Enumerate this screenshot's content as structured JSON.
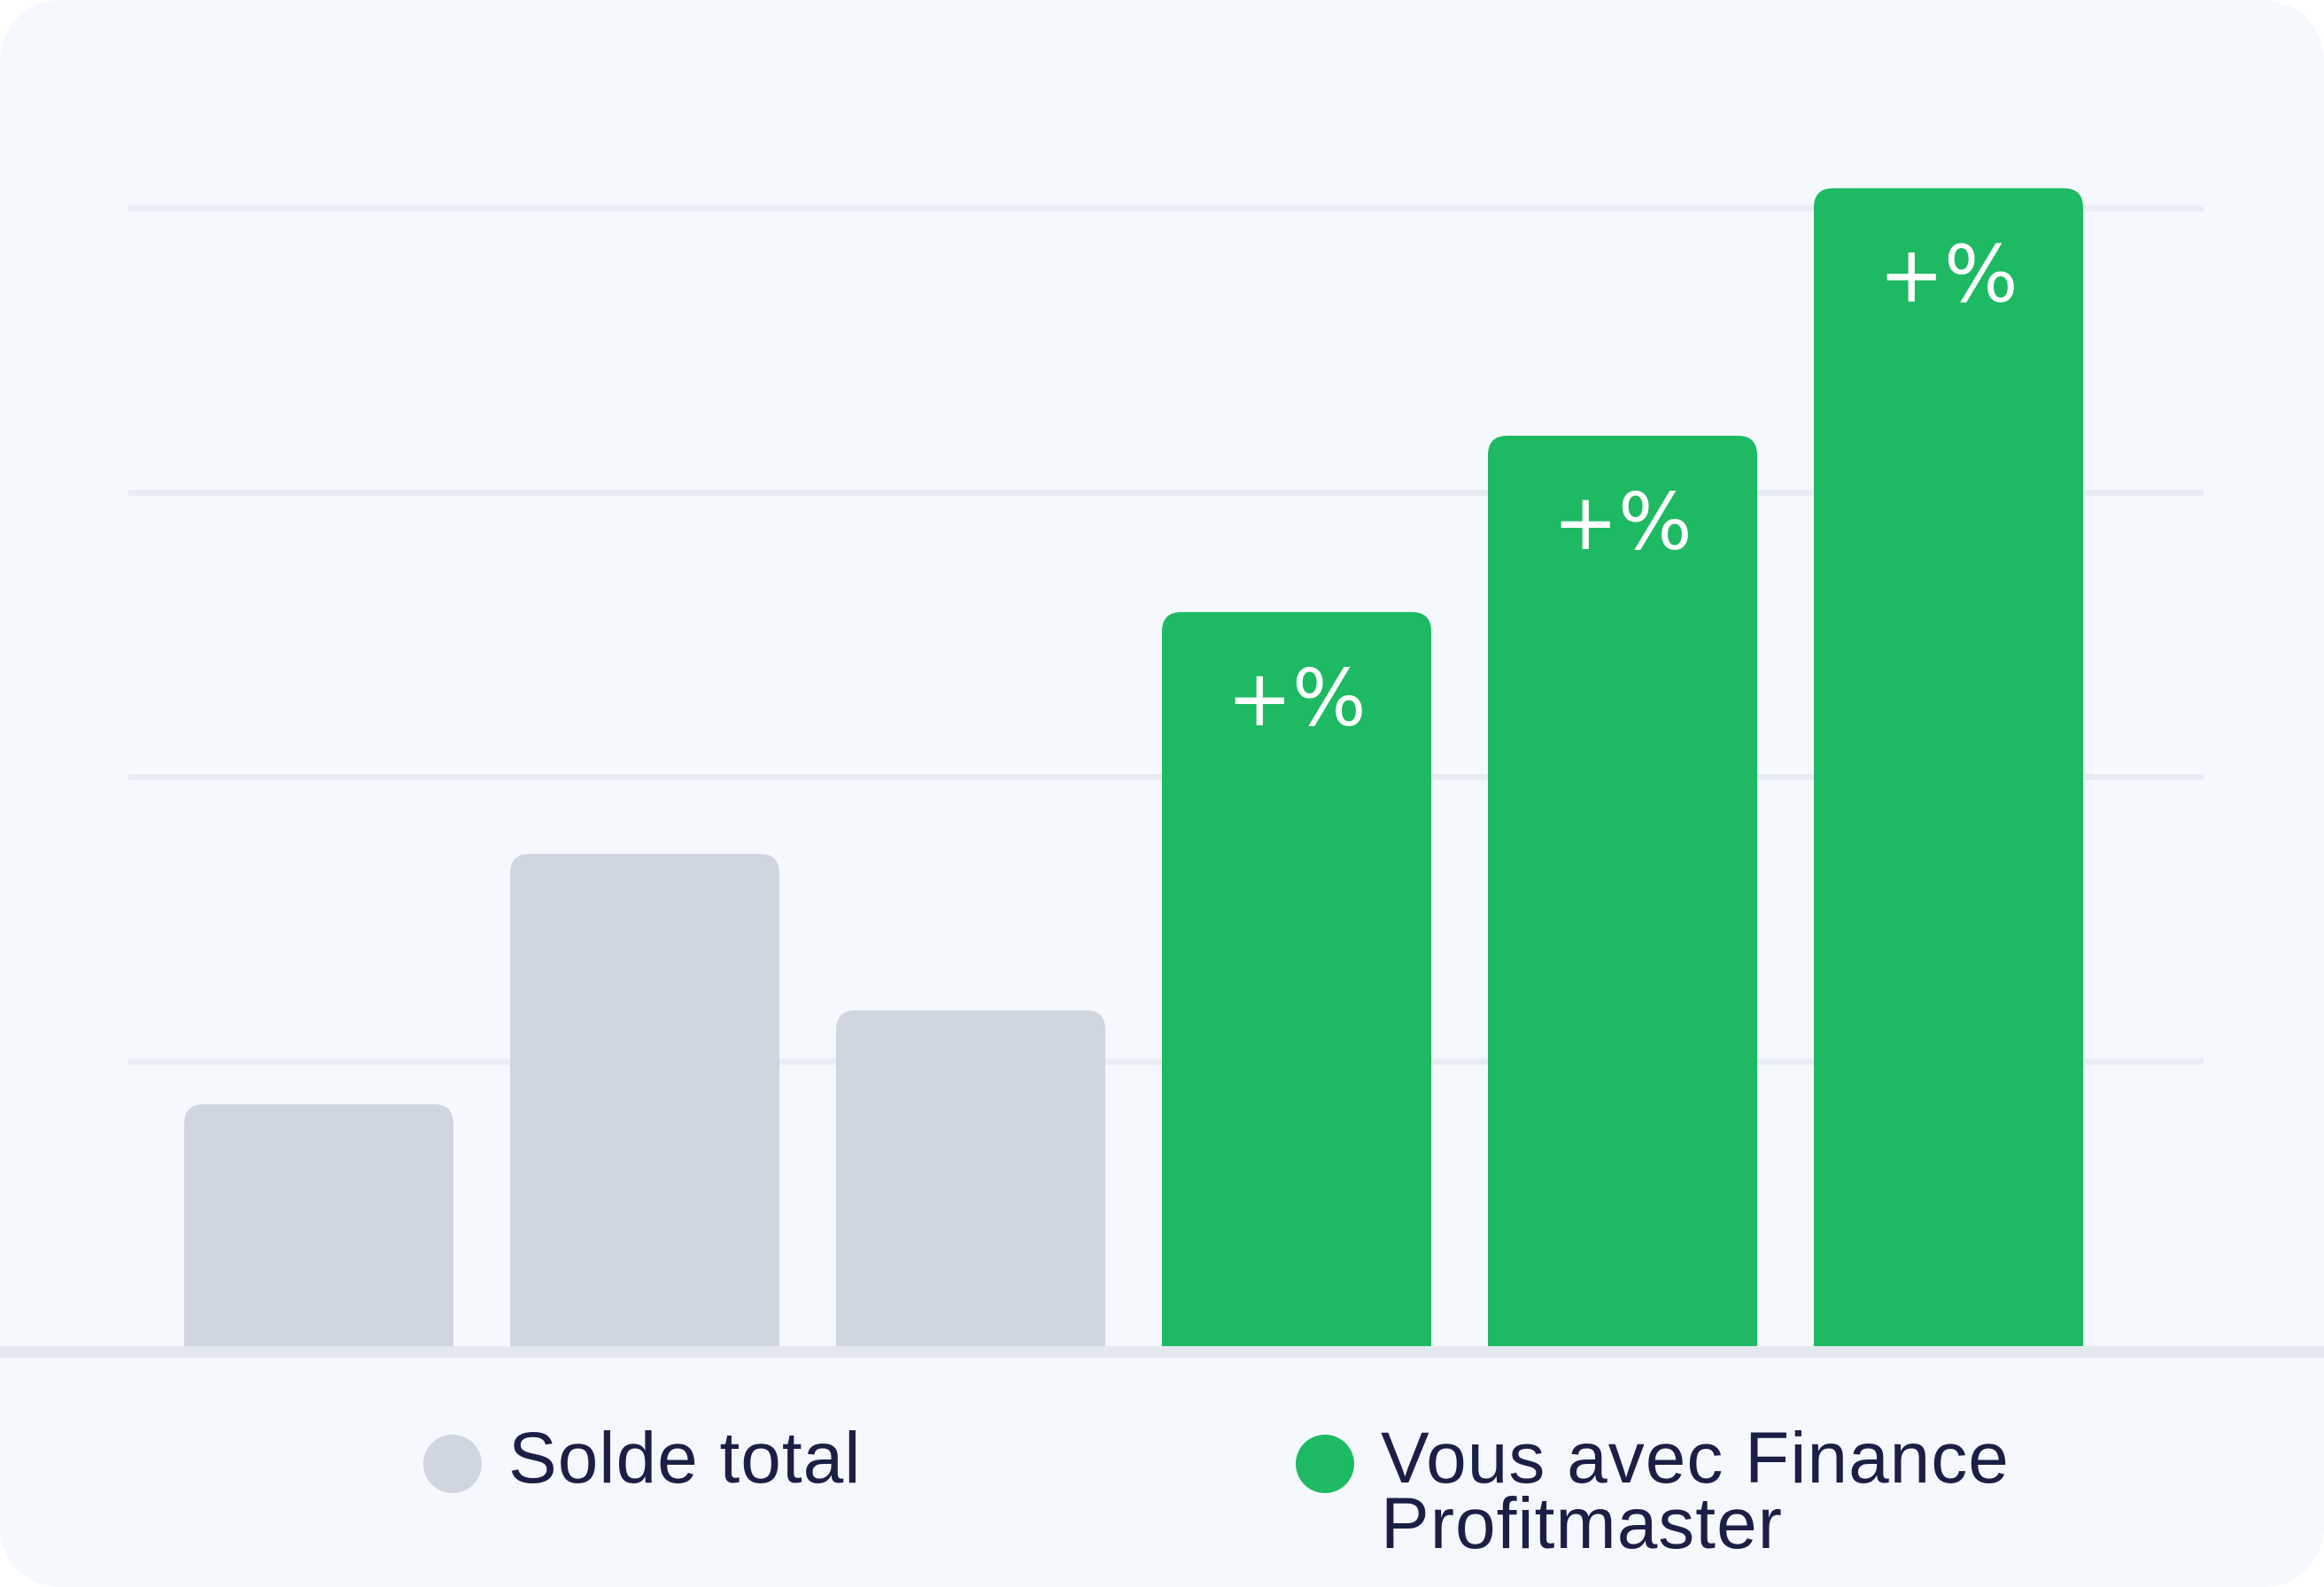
{
  "chart_data": {
    "type": "bar",
    "categories": [
      "",
      "",
      "",
      "",
      "",
      ""
    ],
    "ylim": [
      0,
      4
    ],
    "grid": true,
    "legend_placement": "bottom",
    "series": [
      {
        "name": "Solde total",
        "color": "#cfd6e0",
        "values": [
          0.85,
          1.73,
          1.18,
          null,
          null,
          null
        ]
      },
      {
        "name": "Vous avec Finance Profitmaster",
        "color": "#1dba63",
        "values": [
          null,
          null,
          null,
          2.58,
          3.2,
          4.07
        ],
        "labels": [
          "",
          "",
          "",
          "+%",
          "+%",
          "+%"
        ]
      }
    ]
  }
}
